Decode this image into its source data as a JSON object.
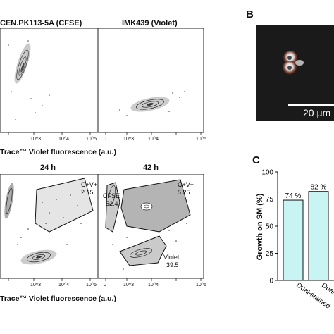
{
  "panel_a": {
    "top_left_title": "CEN.PK113-5A (CFSE)",
    "top_right_title": "IMK439 (Violet)",
    "top_xlabel": "Trace™ Violet fluorescence (a.u.)",
    "bottom_left_title": "24 h",
    "bottom_right_title": "42 h",
    "bottom_xlabel": "Trace™ Violet fluorescence (a.u.)",
    "tick_labels": [
      "10^3",
      "10^4",
      "10^5",
      "0",
      "10^3",
      "10^4",
      "10^5"
    ],
    "gates_24h": {
      "cv_label": "C+V+",
      "cv_value": "2.65"
    },
    "gates_42h": {
      "cv_label": "C+V+",
      "cv_value": "5.25",
      "cfse_label": "CFSE",
      "cfse_value": "52.4",
      "violet_label": "Violet",
      "violet_value": "39.5"
    }
  },
  "panel_b": {
    "letter": "B",
    "scale_bar_label": "20 μm"
  },
  "panel_c": {
    "letter": "C",
    "chart_data": {
      "type": "bar",
      "ylabel": "Growth on SM (%)",
      "ylim": [
        0,
        100
      ],
      "yticks": [
        "0",
        "25",
        "50",
        "75",
        "100"
      ],
      "categories": [
        "Dual-stained",
        "Dual-"
      ],
      "values": [
        74,
        82
      ],
      "data_labels": [
        "74 %",
        "82 %"
      ],
      "bar_color": "#c8f4f4"
    }
  }
}
